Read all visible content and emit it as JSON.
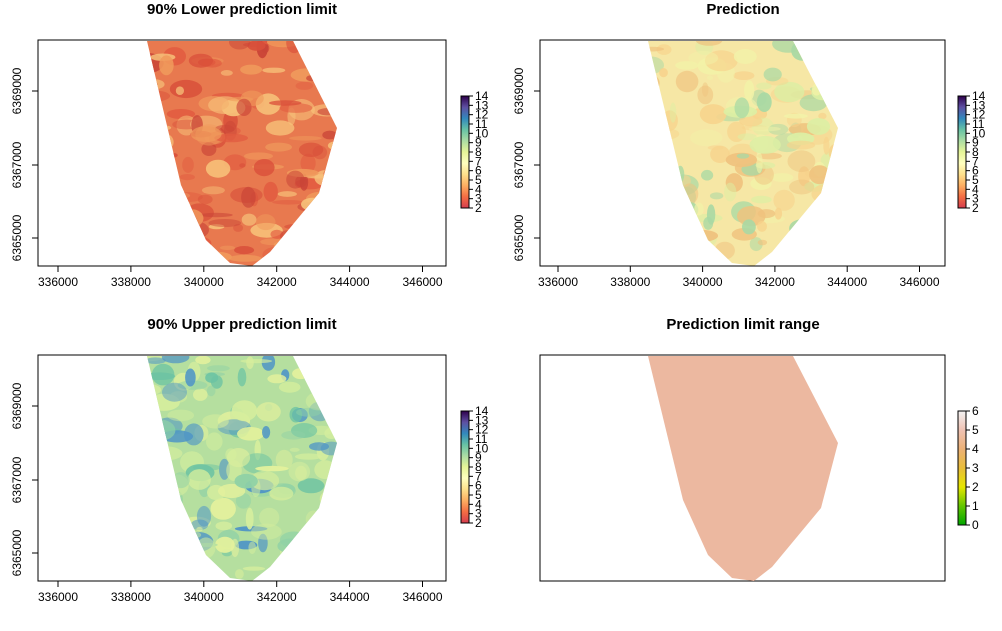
{
  "panels": [
    {
      "title": "90% Lower prediction limit",
      "x_ticks": [
        "336000",
        "338000",
        "340000",
        "342000",
        "344000",
        "346000"
      ],
      "y_ticks": [
        "6365000",
        "6367000",
        "6369000"
      ],
      "legend_ticks": [
        "2",
        "3",
        "4",
        "5",
        "6",
        "7",
        "8",
        "9",
        "10",
        "11",
        "12",
        "13",
        "14"
      ],
      "legend_scale": "spectral",
      "base_color": "#e8794f",
      "patch_colors": [
        "#d94f3a",
        "#f09a5c",
        "#f7c27a",
        "#e25b40",
        "#c94437"
      ]
    },
    {
      "title": "Prediction",
      "x_ticks": [
        "336000",
        "338000",
        "340000",
        "342000",
        "344000",
        "346000"
      ],
      "y_ticks": [
        "6365000",
        "6367000",
        "6369000"
      ],
      "legend_ticks": [
        "2",
        "3",
        "4",
        "5",
        "6",
        "7",
        "8",
        "9",
        "10",
        "11",
        "12",
        "13",
        "14"
      ],
      "legend_scale": "spectral",
      "base_color": "#f6e7a5",
      "patch_colors": [
        "#f7d38c",
        "#f2f2a8",
        "#efc27e",
        "#dcefa4",
        "#a9d9a4"
      ]
    },
    {
      "title": "90% Upper prediction limit",
      "x_ticks": [
        "336000",
        "338000",
        "340000",
        "342000",
        "344000",
        "346000"
      ],
      "y_ticks": [
        "6365000",
        "6367000",
        "6369000"
      ],
      "legend_ticks": [
        "2",
        "3",
        "4",
        "5",
        "6",
        "7",
        "8",
        "9",
        "10",
        "11",
        "12",
        "13",
        "14"
      ],
      "legend_scale": "spectral",
      "base_color": "#b5df9f",
      "patch_colors": [
        "#6cc3a3",
        "#e5f29c",
        "#8fd1a6",
        "#4f95c6",
        "#d6ee9d"
      ]
    },
    {
      "title": "Prediction limit range",
      "x_ticks": [],
      "y_ticks": [],
      "legend_ticks": [
        "0",
        "1",
        "2",
        "3",
        "4",
        "5",
        "6"
      ],
      "legend_scale": "terrain",
      "base_color": "#ecb8a0",
      "patch_colors": []
    }
  ],
  "colors": {
    "spectral": [
      "#d53e4f",
      "#f46d43",
      "#fdae61",
      "#fee08b",
      "#ffffbf",
      "#e6f598",
      "#abdda4",
      "#66c2a5",
      "#3288bd",
      "#5e4fa2",
      "#2d004b"
    ],
    "terrain": [
      "#00a600",
      "#63c600",
      "#e6e600",
      "#e9bd3a",
      "#ecb176",
      "#efc2b3",
      "#f2f2f2"
    ]
  }
}
